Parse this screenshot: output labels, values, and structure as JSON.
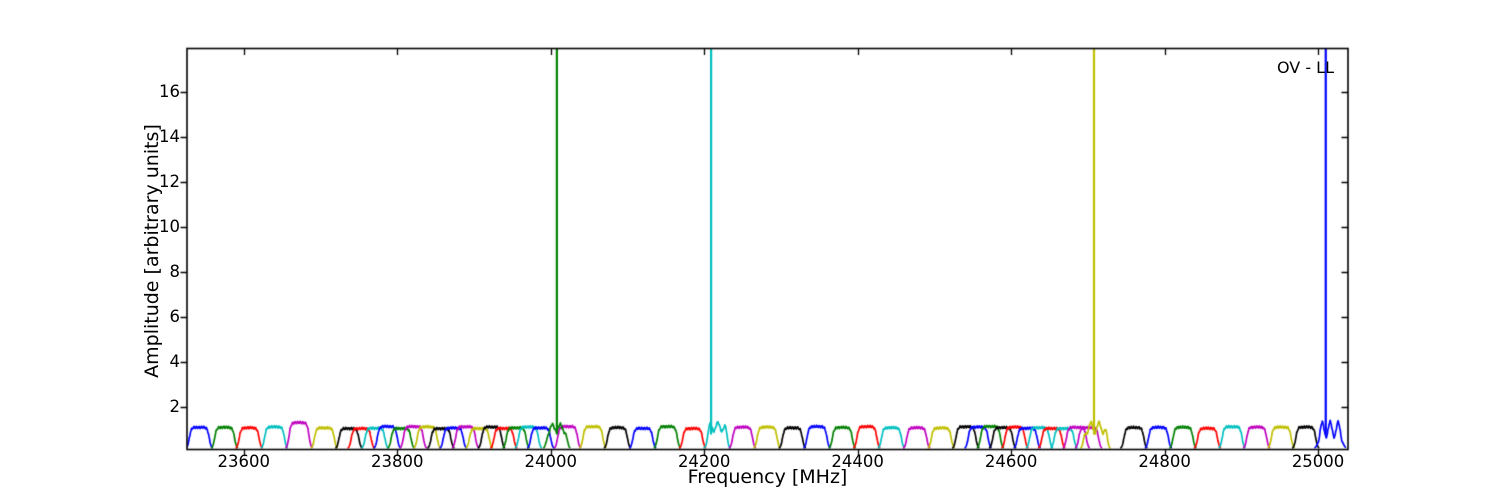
{
  "figure": {
    "background": "#ffffff"
  },
  "chart_data": {
    "type": "line",
    "title": "",
    "xlabel": "Frequency [MHz]",
    "ylabel": "Amplitude [arbitrary units]",
    "annotation": "OV - LL",
    "xlim": [
      23526,
      25039
    ],
    "ylim": [
      0.1,
      17.95
    ],
    "xticks": [
      "23600",
      "23800",
      "24000",
      "24200",
      "24400",
      "24600",
      "24800",
      "25000"
    ],
    "yticks": [
      "2",
      "4",
      "6",
      "8",
      "10",
      "12",
      "14",
      "16"
    ],
    "grid": false,
    "legend": "none",
    "palette": {
      "b": "#0000ff",
      "g": "#008000",
      "r": "#ff0000",
      "c": "#00bfbf",
      "m": "#bf00bf",
      "y": "#bfbf00",
      "k": "#000000"
    },
    "baseline_amplitude": 1.1,
    "bandpass_width_mhz": 32,
    "spikes": [
      {
        "f": 24008,
        "c": "g"
      },
      {
        "f": 24209,
        "c": "c"
      },
      {
        "f": 24708,
        "c": "y"
      },
      {
        "f": 25010,
        "c": "b"
      }
    ],
    "bumps": [
      {
        "f": 23542,
        "c": "b"
      },
      {
        "f": 23575,
        "c": "g"
      },
      {
        "f": 23607,
        "c": "r"
      },
      {
        "f": 23640,
        "c": "c"
      },
      {
        "f": 23672,
        "c": "m",
        "a": 1.3
      },
      {
        "f": 23705,
        "c": "y"
      },
      {
        "f": 23737,
        "c": "k"
      },
      {
        "f": 23753,
        "c": "r"
      },
      {
        "f": 23771,
        "c": "c"
      },
      {
        "f": 23787,
        "c": "b"
      },
      {
        "f": 23805,
        "c": "g"
      },
      {
        "f": 23821,
        "c": "m"
      },
      {
        "f": 23839,
        "c": "y"
      },
      {
        "f": 23857,
        "c": "k"
      },
      {
        "f": 23873,
        "c": "b"
      },
      {
        "f": 23889,
        "c": "m"
      },
      {
        "f": 23907,
        "c": "y"
      },
      {
        "f": 23923,
        "c": "k"
      },
      {
        "f": 23939,
        "c": "r"
      },
      {
        "f": 23955,
        "c": "g"
      },
      {
        "f": 23971,
        "c": "c"
      },
      {
        "f": 23987,
        "c": "b"
      },
      {
        "f": 24022,
        "c": "m"
      },
      {
        "f": 24008,
        "c": "g",
        "r": 0.16
      },
      {
        "f": 24055,
        "c": "y"
      },
      {
        "f": 24087,
        "c": "k"
      },
      {
        "f": 24120,
        "c": "b"
      },
      {
        "f": 24152,
        "c": "g"
      },
      {
        "f": 24185,
        "c": "r"
      },
      {
        "f": 24217,
        "c": "c",
        "r": 0.2
      },
      {
        "f": 24250,
        "c": "m"
      },
      {
        "f": 24282,
        "c": "y"
      },
      {
        "f": 24315,
        "c": "k"
      },
      {
        "f": 24347,
        "c": "b"
      },
      {
        "f": 24380,
        "c": "g"
      },
      {
        "f": 24412,
        "c": "r"
      },
      {
        "f": 24444,
        "c": "c"
      },
      {
        "f": 24477,
        "c": "m"
      },
      {
        "f": 24509,
        "c": "y"
      },
      {
        "f": 24541,
        "c": "k"
      },
      {
        "f": 24557,
        "c": "b"
      },
      {
        "f": 24573,
        "c": "g"
      },
      {
        "f": 24589,
        "c": "k"
      },
      {
        "f": 24605,
        "c": "r"
      },
      {
        "f": 24621,
        "c": "b"
      },
      {
        "f": 24637,
        "c": "c"
      },
      {
        "f": 24653,
        "c": "r"
      },
      {
        "f": 24669,
        "c": "c"
      },
      {
        "f": 24685,
        "c": "m"
      },
      {
        "f": 24701,
        "c": "m"
      },
      {
        "f": 24710,
        "c": "y",
        "r": 0.24,
        "w": 15
      },
      {
        "f": 24760,
        "c": "k"
      },
      {
        "f": 24792,
        "c": "b"
      },
      {
        "f": 24824,
        "c": "g"
      },
      {
        "f": 24856,
        "c": "r"
      },
      {
        "f": 24888,
        "c": "c"
      },
      {
        "f": 24920,
        "c": "m"
      },
      {
        "f": 24952,
        "c": "y"
      },
      {
        "f": 24984,
        "c": "k"
      },
      {
        "f": 25016,
        "c": "b",
        "r": 0.34,
        "w": 16,
        "a": 1.0
      }
    ]
  }
}
